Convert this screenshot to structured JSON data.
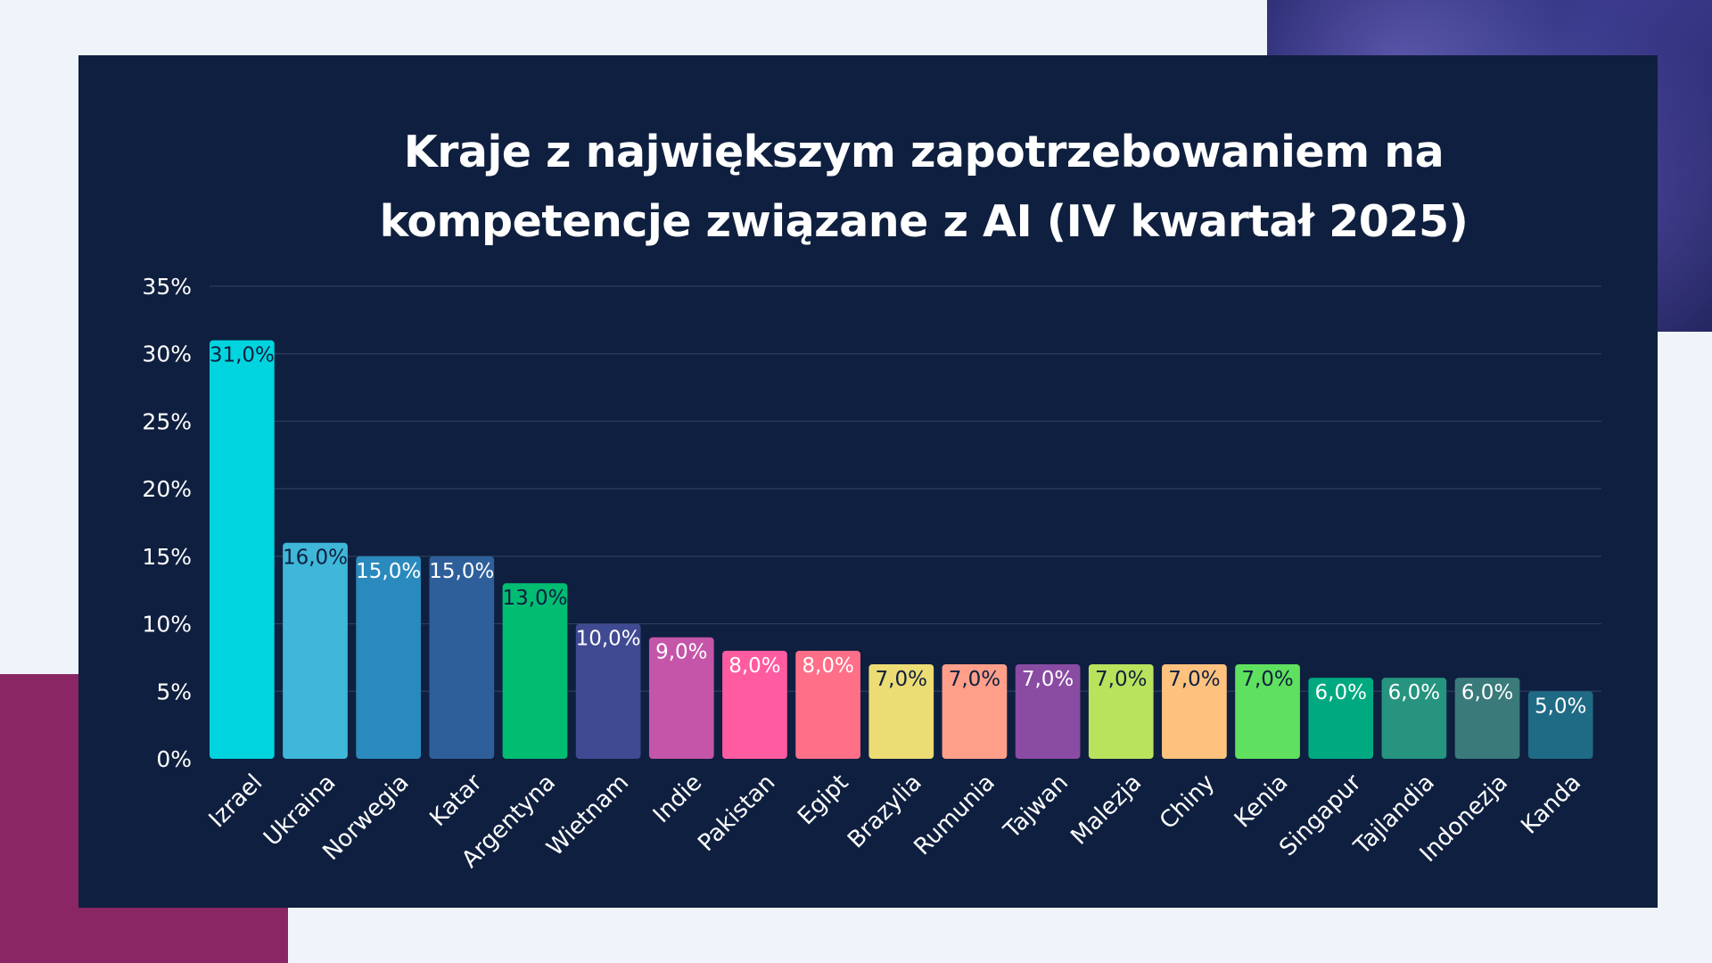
{
  "chart_data": {
    "type": "bar",
    "title_lines": [
      "Kraje z największym zapotrzebowaniem na",
      "kompetencje związane z AI (IV kwartał 2025)"
    ],
    "categories": [
      "Izrael",
      "Ukraina",
      "Norwegia",
      "Katar",
      "Argentyna",
      "Wietnam",
      "Indie",
      "Pakistan",
      "Egipt",
      "Brazylia",
      "Rumunia",
      "Tajwan",
      "Malezja",
      "Chiny",
      "Kenia",
      "Singapur",
      "Tajlandia",
      "Indonezja",
      "Kanda"
    ],
    "values": [
      31.0,
      16.0,
      15.0,
      15.0,
      13.0,
      10.0,
      9.0,
      8.0,
      8.0,
      7.0,
      7.0,
      7.0,
      7.0,
      7.0,
      7.0,
      6.0,
      6.0,
      6.0,
      5.0
    ],
    "value_labels": [
      "31,0%",
      "16,0%",
      "15,0%",
      "15,0%",
      "13,0%",
      "10,0%",
      "9,0%",
      "8,0%",
      "8,0%",
      "7,0%",
      "7,0%",
      "7,0%",
      "7,0%",
      "7,0%",
      "7,0%",
      "6,0%",
      "6,0%",
      "6,0%",
      "5,0%"
    ],
    "bar_colors": [
      "#00d4df",
      "#3fb7d9",
      "#2b8abd",
      "#2e5f9a",
      "#00bd72",
      "#3f4a92",
      "#c455a8",
      "#ff5ba0",
      "#ff6f88",
      "#ecdc74",
      "#ff9f8a",
      "#8a4ba3",
      "#b9e35c",
      "#ffc27e",
      "#5fe05e",
      "#00a980",
      "#26947f",
      "#3a7a7b",
      "#1f6a84"
    ],
    "label_colors": [
      "#0f1f3f",
      "#0f1f3f",
      "#ffffff",
      "#ffffff",
      "#0f1f3f",
      "#ffffff",
      "#ffffff",
      "#ffffff",
      "#ffffff",
      "#0f1f3f",
      "#0f1f3f",
      "#ffffff",
      "#0f1f3f",
      "#0f1f3f",
      "#0f1f3f",
      "#ffffff",
      "#ffffff",
      "#ffffff",
      "#ffffff"
    ],
    "y_ticks": [
      0,
      5,
      10,
      15,
      20,
      25,
      30,
      35
    ],
    "y_tick_labels": [
      "0%",
      "5%",
      "10%",
      "15%",
      "20%",
      "25%",
      "30%",
      "35%"
    ],
    "ylim": [
      0,
      35
    ],
    "xlabel": "",
    "ylabel": "",
    "grid": true,
    "legend": "none"
  }
}
